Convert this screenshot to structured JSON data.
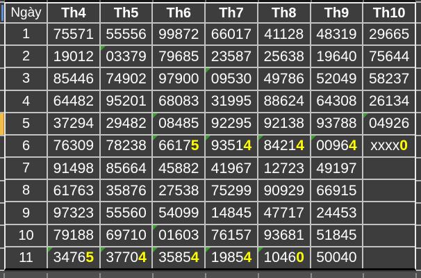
{
  "table": {
    "day_header": "Ngày",
    "columns": [
      "Th4",
      "Th5",
      "Th6",
      "Th7",
      "Th8",
      "Th9",
      "Th10"
    ],
    "rows": [
      {
        "day": "1",
        "cells": [
          {
            "pre": "75571",
            "hl": ""
          },
          {
            "pre": "55556",
            "hl": ""
          },
          {
            "pre": "99872",
            "hl": ""
          },
          {
            "pre": "66017",
            "hl": ""
          },
          {
            "pre": "41128",
            "hl": ""
          },
          {
            "pre": "48319",
            "hl": ""
          },
          {
            "pre": "29665",
            "hl": ""
          }
        ]
      },
      {
        "day": "2",
        "cells": [
          {
            "pre": "19012",
            "hl": ""
          },
          {
            "pre": "03379",
            "hl": "",
            "flag": true
          },
          {
            "pre": "79685",
            "hl": ""
          },
          {
            "pre": "23587",
            "hl": ""
          },
          {
            "pre": "25638",
            "hl": ""
          },
          {
            "pre": "19640",
            "hl": ""
          },
          {
            "pre": "75644",
            "hl": ""
          }
        ]
      },
      {
        "day": "3",
        "cells": [
          {
            "pre": "85446",
            "hl": ""
          },
          {
            "pre": "74902",
            "hl": ""
          },
          {
            "pre": "97900",
            "hl": ""
          },
          {
            "pre": "09530",
            "hl": "",
            "flag": true
          },
          {
            "pre": "49786",
            "hl": ""
          },
          {
            "pre": "52049",
            "hl": ""
          },
          {
            "pre": "58237",
            "hl": ""
          }
        ]
      },
      {
        "day": "4",
        "cells": [
          {
            "pre": "64482",
            "hl": ""
          },
          {
            "pre": "95201",
            "hl": ""
          },
          {
            "pre": "68083",
            "hl": ""
          },
          {
            "pre": "31995",
            "hl": ""
          },
          {
            "pre": "88624",
            "hl": ""
          },
          {
            "pre": "64308",
            "hl": ""
          },
          {
            "pre": "26134",
            "hl": ""
          }
        ]
      },
      {
        "day": "5",
        "cells": [
          {
            "pre": "37294",
            "hl": ""
          },
          {
            "pre": "29482",
            "hl": ""
          },
          {
            "pre": "08485",
            "hl": "",
            "flag": true
          },
          {
            "pre": "92295",
            "hl": ""
          },
          {
            "pre": "92138",
            "hl": ""
          },
          {
            "pre": "93788",
            "hl": ""
          },
          {
            "pre": "04926",
            "hl": "",
            "flag": true
          }
        ]
      },
      {
        "day": "6",
        "cells": [
          {
            "pre": "76309",
            "hl": ""
          },
          {
            "pre": "78238",
            "hl": ""
          },
          {
            "pre": "6617",
            "hl": "5",
            "flag": true
          },
          {
            "pre": "9351",
            "hl": "4",
            "flag": true
          },
          {
            "pre": "8421",
            "hl": "4",
            "flag": true
          },
          {
            "pre": "0096",
            "hl": "4",
            "flag": true
          },
          {
            "pre": "xxxx",
            "hl": "0"
          }
        ]
      },
      {
        "day": "7",
        "cells": [
          {
            "pre": "91498",
            "hl": ""
          },
          {
            "pre": "85664",
            "hl": ""
          },
          {
            "pre": "45882",
            "hl": ""
          },
          {
            "pre": "41967",
            "hl": ""
          },
          {
            "pre": "12723",
            "hl": ""
          },
          {
            "pre": "49197",
            "hl": ""
          },
          {
            "pre": "",
            "hl": ""
          }
        ]
      },
      {
        "day": "8",
        "cells": [
          {
            "pre": "61763",
            "hl": ""
          },
          {
            "pre": "35876",
            "hl": ""
          },
          {
            "pre": "27538",
            "hl": ""
          },
          {
            "pre": "75299",
            "hl": ""
          },
          {
            "pre": "90929",
            "hl": ""
          },
          {
            "pre": "66915",
            "hl": ""
          },
          {
            "pre": "",
            "hl": ""
          }
        ]
      },
      {
        "day": "9",
        "cells": [
          {
            "pre": "97323",
            "hl": ""
          },
          {
            "pre": "55560",
            "hl": ""
          },
          {
            "pre": "54099",
            "hl": ""
          },
          {
            "pre": "14845",
            "hl": ""
          },
          {
            "pre": "47717",
            "hl": ""
          },
          {
            "pre": "24453",
            "hl": ""
          },
          {
            "pre": "",
            "hl": ""
          }
        ]
      },
      {
        "day": "10",
        "cells": [
          {
            "pre": "79188",
            "hl": ""
          },
          {
            "pre": "69710",
            "hl": ""
          },
          {
            "pre": "01603",
            "hl": "",
            "flag": true
          },
          {
            "pre": "76157",
            "hl": ""
          },
          {
            "pre": "93681",
            "hl": ""
          },
          {
            "pre": "51845",
            "hl": ""
          },
          {
            "pre": "",
            "hl": ""
          }
        ]
      },
      {
        "day": "11",
        "cells": [
          {
            "pre": "3476",
            "hl": "5",
            "flag": true
          },
          {
            "pre": "3770",
            "hl": "4",
            "flag": true
          },
          {
            "pre": "3585",
            "hl": "4",
            "flag": true
          },
          {
            "pre": "1985",
            "hl": "4",
            "flag": true
          },
          {
            "pre": "1046",
            "hl": "0",
            "flag": true
          },
          {
            "pre": "50040",
            "hl": ""
          },
          {
            "pre": "",
            "hl": ""
          }
        ]
      }
    ]
  },
  "selection": {
    "marked_row_day": "5"
  },
  "colors": {
    "cell_bg": "#3d3d3d",
    "grid_line": "#c2c2c2",
    "text": "#ffffff",
    "highlight_digit": "#ffff00",
    "flag_green": "#3aa02f",
    "row5_marker": "#f2bd4a",
    "bottom_border": "#060606"
  }
}
